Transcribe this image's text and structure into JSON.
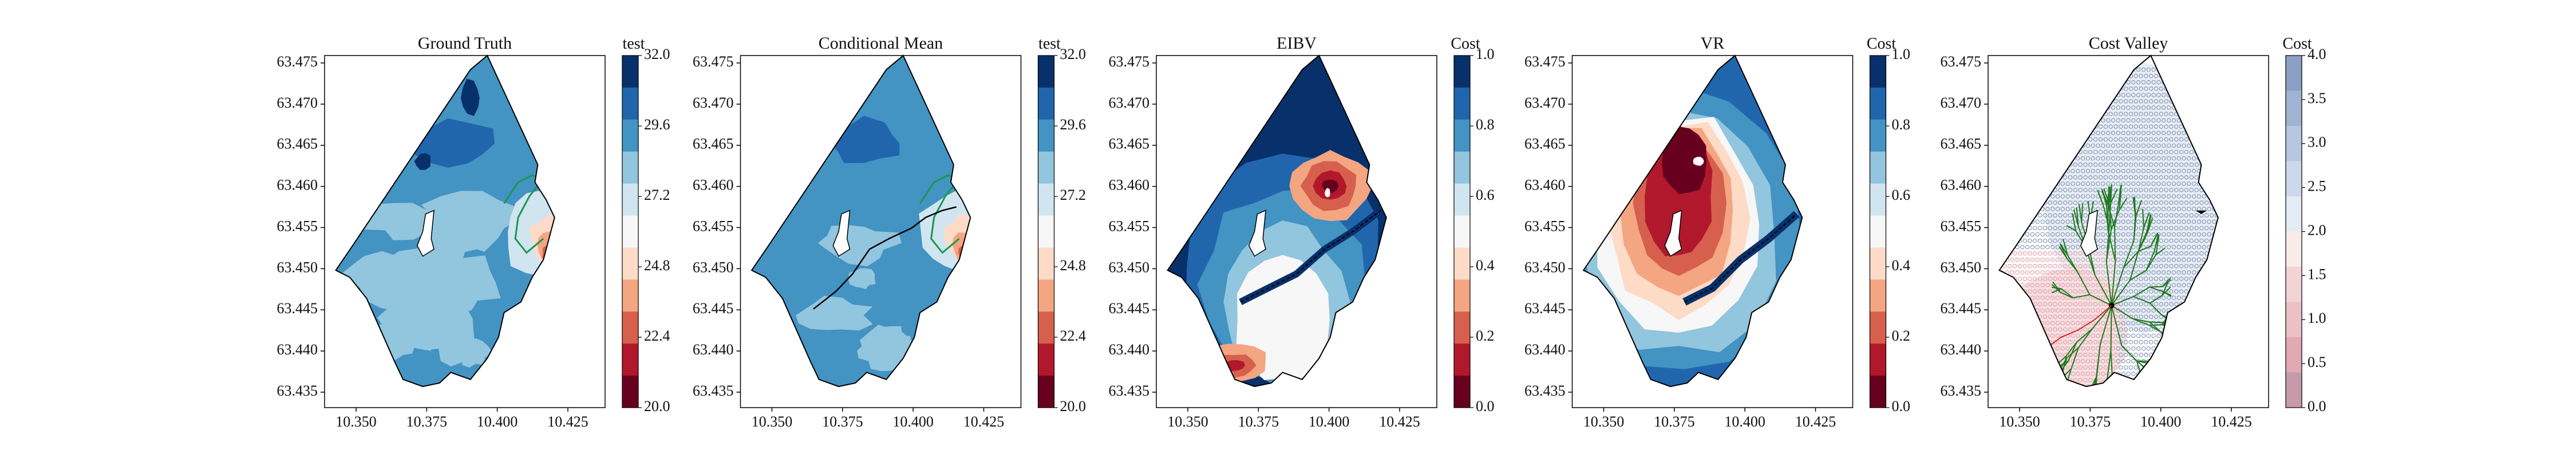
{
  "chart_data": [
    {
      "type": "contour-map",
      "title": "Ground Truth",
      "x_ticks": [
        "10.350",
        "10.375",
        "10.400",
        "10.425"
      ],
      "y_ticks": [
        "63.475",
        "63.470",
        "63.465",
        "63.460",
        "63.455",
        "63.450",
        "63.445",
        "63.440",
        "63.435"
      ],
      "colorbar_label": "test",
      "colorbar_ticks": [
        "32.0",
        "29.6",
        "27.2",
        "24.8",
        "22.4",
        "20.0"
      ],
      "colorbar_colors": [
        "#08306b",
        "#2166ac",
        "#4393c3",
        "#92c5de",
        "#d1e5f0",
        "#f7f7f7",
        "#fddbc7",
        "#f4a582",
        "#d6604d",
        "#b2182b",
        "#67001f"
      ],
      "field": "salinity",
      "overlay": "threshold contour"
    },
    {
      "type": "contour-map",
      "title": "Conditional Mean",
      "x_ticks": [
        "10.350",
        "10.375",
        "10.400",
        "10.425"
      ],
      "y_ticks": [
        "63.475",
        "63.470",
        "63.465",
        "63.460",
        "63.455",
        "63.450",
        "63.445",
        "63.440",
        "63.435"
      ],
      "colorbar_label": "test",
      "colorbar_ticks": [
        "32.0",
        "29.6",
        "27.2",
        "24.8",
        "22.4",
        "20.0"
      ],
      "colorbar_colors": [
        "#08306b",
        "#2166ac",
        "#4393c3",
        "#92c5de",
        "#d1e5f0",
        "#f7f7f7",
        "#fddbc7",
        "#f4a582",
        "#d6604d",
        "#b2182b",
        "#67001f"
      ],
      "overlay": "threshold contour + trajectory"
    },
    {
      "type": "contour-map",
      "title": "EIBV",
      "x_ticks": [
        "10.350",
        "10.375",
        "10.400",
        "10.425"
      ],
      "y_ticks": [
        "63.475",
        "63.470",
        "63.465",
        "63.460",
        "63.455",
        "63.450",
        "63.445",
        "63.440",
        "63.435"
      ],
      "colorbar_label": "Cost",
      "colorbar_ticks": [
        "1.0",
        "0.8",
        "0.6",
        "0.4",
        "0.2",
        "0.0"
      ],
      "colorbar_colors": [
        "#08306b",
        "#2166ac",
        "#4393c3",
        "#92c5de",
        "#d1e5f0",
        "#f7f7f7",
        "#fddbc7",
        "#f4a582",
        "#d6604d",
        "#b2182b",
        "#67001f"
      ]
    },
    {
      "type": "contour-map",
      "title": "VR",
      "x_ticks": [
        "10.350",
        "10.375",
        "10.400",
        "10.425"
      ],
      "y_ticks": [
        "63.475",
        "63.470",
        "63.465",
        "63.460",
        "63.455",
        "63.450",
        "63.445",
        "63.440",
        "63.435"
      ],
      "colorbar_label": "Cost",
      "colorbar_ticks": [
        "1.0",
        "0.8",
        "0.6",
        "0.4",
        "0.2",
        "0.0"
      ],
      "colorbar_colors": [
        "#08306b",
        "#2166ac",
        "#4393c3",
        "#92c5de",
        "#d1e5f0",
        "#f7f7f7",
        "#fddbc7",
        "#f4a582",
        "#d6604d",
        "#b2182b",
        "#67001f"
      ]
    },
    {
      "type": "contour-map",
      "title": "Cost Valley",
      "x_ticks": [
        "10.350",
        "10.375",
        "10.400",
        "10.425"
      ],
      "y_ticks": [
        "63.475",
        "63.470",
        "63.465",
        "63.460",
        "63.455",
        "63.450",
        "63.445",
        "63.440",
        "63.435"
      ],
      "colorbar_label": "Cost",
      "colorbar_ticks": [
        "4.0",
        "3.5",
        "3.0",
        "2.5",
        "2.0",
        "1.5",
        "1.0",
        "0.5",
        "0.0"
      ],
      "colorbar_colors": [
        "#8aa0c4",
        "#9fb3d2",
        "#b6c7df",
        "#cdd9ea",
        "#e4ebf3",
        "#f7ecea",
        "#f2d4d6",
        "#ebc0c6",
        "#e0a9b4",
        "#c79aa9"
      ],
      "overlay": "RRT tree + grid nodes"
    }
  ]
}
